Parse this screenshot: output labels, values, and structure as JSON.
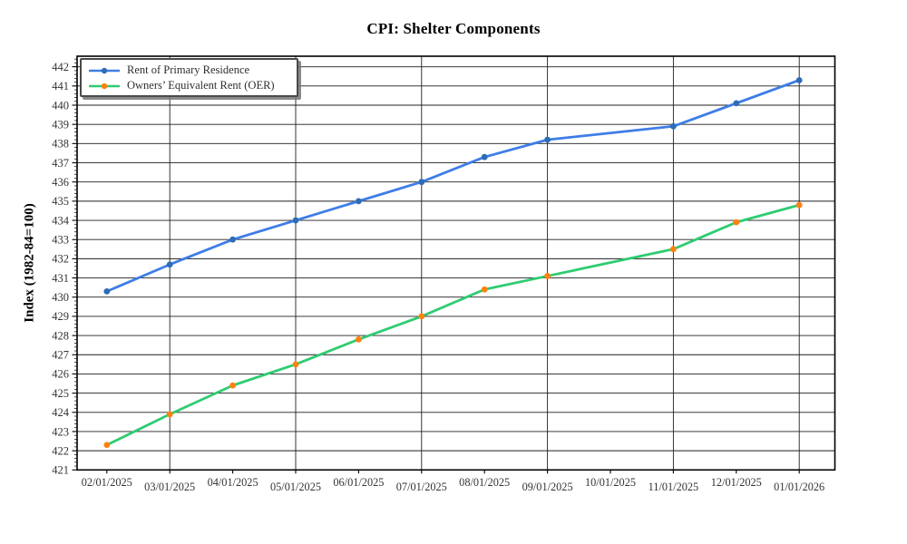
{
  "figure": {
    "title": "CPI: Shelter Components"
  },
  "chart_data": {
    "type": "line",
    "title": "CPI: Shelter Components",
    "xlabel": "",
    "ylabel": "Index (1982-84=100)",
    "x_tick_labels": [
      "02/01/2025",
      "03/01/2025",
      "04/01/2025",
      "05/01/2025",
      "06/01/2025",
      "07/01/2025",
      "08/01/2025",
      "09/01/2025",
      "10/01/2025",
      "11/01/2025",
      "12/01/2025",
      "01/01/2026"
    ],
    "series": [
      {
        "name": "Rent of Primary Residence",
        "line_color": "#3e7de7",
        "marker_color": "#2d6db5",
        "values": [
          430.3,
          431.7,
          433.0,
          434.0,
          435.0,
          436.0,
          437.3,
          438.2,
          null,
          438.9,
          440.1,
          441.3
        ]
      },
      {
        "name": "Owners’ Equivalent Rent (OER)",
        "line_color": "#2ecc71",
        "marker_color": "#ff8210",
        "values": [
          422.3,
          423.9,
          425.4,
          426.5,
          427.8,
          429.0,
          430.4,
          431.1,
          null,
          432.5,
          433.9,
          434.8
        ]
      }
    ],
    "ylim": [
      421,
      442.55
    ],
    "yticks": [
      421,
      422,
      423,
      424,
      425,
      426,
      427,
      428,
      429,
      430,
      431,
      432,
      433,
      434,
      435,
      436,
      437,
      438,
      439,
      440,
      441,
      442
    ],
    "grid_horizontal": true,
    "vertical_gridline_x_indices": [
      1,
      3,
      5,
      7,
      9,
      11
    ],
    "legend_position": "upper left",
    "axis_color": "#000000",
    "grid_color": "#1f1f1f",
    "tick_label_color": "#333333"
  }
}
